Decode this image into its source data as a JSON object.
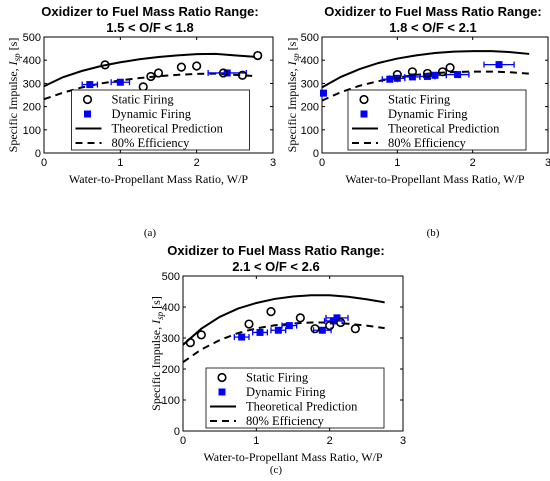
{
  "legend_labels": {
    "static": "Static Firing",
    "dynamic": "Dynamic Firing",
    "theory": "Theoretical Prediction",
    "eff": "80% Efficiency"
  },
  "colors": {
    "static": "#000000",
    "dynamic": "#0000ff",
    "theory": "#000000",
    "eff": "#000000"
  },
  "chart_data": [
    {
      "type": "scatter",
      "title": [
        "Oxidizer to Fuel Mass Ratio Range:",
        "1.5 < O/F < 1.8"
      ],
      "caption": "(a)",
      "xlabel": "Water-to-Propellant Mass Ratio, W/P",
      "ylabel": "Specific Impulse, ",
      "ylabel_var": "I",
      "ylabel_sub": "sp",
      "ylabel_unit": " [s]",
      "xlim": [
        0,
        3
      ],
      "ylim": [
        0,
        500
      ],
      "xticks": [
        "0",
        "1",
        "2",
        "3"
      ],
      "yticks": [
        "0",
        "100",
        "200",
        "300",
        "400",
        "500"
      ],
      "legend_position": "bottom-center",
      "series": [
        {
          "name": "Static Firing",
          "x": [
            0.8,
            1.3,
            1.4,
            1.5,
            1.8,
            2.0,
            2.35,
            2.6,
            2.8
          ],
          "y": [
            380,
            285,
            330,
            345,
            370,
            375,
            345,
            335,
            420
          ]
        },
        {
          "name": "Dynamic Firing",
          "x": [
            0.6,
            1.0,
            2.4
          ],
          "y": [
            295,
            305,
            345
          ],
          "xerr": [
            0.1,
            0.12,
            0.25
          ]
        },
        {
          "name": "Theoretical Prediction",
          "x": [
            0,
            0.25,
            0.5,
            0.75,
            1.0,
            1.25,
            1.5,
            1.75,
            2.0,
            2.25,
            2.5,
            2.75
          ],
          "y": [
            288,
            327,
            354,
            375,
            391,
            404,
            414,
            421,
            426,
            427,
            421,
            415
          ]
        },
        {
          "name": "80% Efficiency",
          "x": [
            0,
            0.25,
            0.5,
            0.75,
            1.0,
            1.25,
            1.5,
            1.75,
            2.0,
            2.25,
            2.5,
            2.75
          ],
          "y": [
            232,
            260,
            283,
            300,
            313,
            323,
            331,
            337,
            341,
            342,
            337,
            332
          ]
        }
      ]
    },
    {
      "type": "scatter",
      "title": [
        "Oxidizer to Fuel Mass Ratio Range:",
        "1.8 < O/F < 2.1"
      ],
      "caption": "(b)",
      "xlabel": "Water-to-Propellant Mass Ratio, W/P",
      "ylabel": "Specific Impulse, ",
      "ylabel_var": "I",
      "ylabel_sub": "sp",
      "ylabel_unit": " [s]",
      "xlim": [
        0,
        3
      ],
      "ylim": [
        0,
        500
      ],
      "xticks": [
        "0",
        "1",
        "2",
        "3"
      ],
      "yticks": [
        "0",
        "100",
        "200",
        "300",
        "400",
        "500"
      ],
      "legend_position": "bottom-center",
      "series": [
        {
          "name": "Static Firing",
          "x": [
            1.0,
            1.2,
            1.4,
            1.6,
            1.7
          ],
          "y": [
            338,
            350,
            343,
            350,
            368
          ]
        },
        {
          "name": "Dynamic Firing",
          "x": [
            0.02,
            0.9,
            1.0,
            1.2,
            1.4,
            1.5,
            1.8,
            2.35
          ],
          "y": [
            258,
            318,
            322,
            328,
            330,
            335,
            338,
            381
          ],
          "xerr": [
            0,
            0.1,
            0.1,
            0.1,
            0.1,
            0.15,
            0.15,
            0.2
          ]
        },
        {
          "name": "Theoretical Prediction",
          "x": [
            0,
            0.25,
            0.5,
            0.75,
            1.0,
            1.25,
            1.5,
            1.75,
            2.0,
            2.25,
            2.5,
            2.75
          ],
          "y": [
            283,
            328,
            362,
            388,
            407,
            421,
            431,
            437,
            439,
            439,
            435,
            427
          ]
        },
        {
          "name": "80% Efficiency",
          "x": [
            0,
            0.25,
            0.5,
            0.75,
            1.0,
            1.25,
            1.5,
            1.75,
            2.0,
            2.25,
            2.5,
            2.75
          ],
          "y": [
            226,
            262,
            290,
            310,
            325,
            337,
            345,
            349,
            351,
            351,
            348,
            342
          ]
        }
      ]
    },
    {
      "type": "scatter",
      "title": [
        "Oxidizer to Fuel Mass Ratio Range:",
        "2.1 < O/F < 2.6"
      ],
      "caption": "(c)",
      "xlabel": "Water-to-Propellant Mass Ratio, W/P",
      "ylabel": "Specific Impulse, ",
      "ylabel_var": "I",
      "ylabel_sub": "sp",
      "ylabel_unit": " [s]",
      "xlim": [
        0,
        3
      ],
      "ylim": [
        0,
        500
      ],
      "xticks": [
        "0",
        "1",
        "2",
        "3"
      ],
      "yticks": [
        "0",
        "100",
        "200",
        "300",
        "400",
        "500"
      ],
      "legend_position": "bottom-center",
      "series": [
        {
          "name": "Static Firing",
          "x": [
            0.1,
            0.25,
            0.9,
            1.2,
            1.6,
            1.8,
            2.0,
            2.15,
            2.35
          ],
          "y": [
            285,
            310,
            345,
            385,
            365,
            330,
            340,
            350,
            330
          ]
        },
        {
          "name": "Dynamic Firing",
          "x": [
            0.8,
            1.05,
            1.3,
            1.45,
            1.9,
            2.05,
            2.1
          ],
          "y": [
            303,
            318,
            325,
            340,
            325,
            355,
            365
          ],
          "xerr": [
            0.1,
            0.1,
            0.1,
            0.1,
            0.12,
            0.12,
            0.15
          ]
        },
        {
          "name": "Theoretical Prediction",
          "x": [
            0,
            0.25,
            0.5,
            0.75,
            1.0,
            1.25,
            1.5,
            1.75,
            2.0,
            2.25,
            2.5,
            2.75
          ],
          "y": [
            278,
            330,
            368,
            395,
            413,
            426,
            434,
            438,
            438,
            433,
            425,
            415
          ]
        },
        {
          "name": "80% Efficiency",
          "x": [
            0,
            0.25,
            0.5,
            0.75,
            1.0,
            1.25,
            1.5,
            1.75,
            2.0,
            2.25,
            2.5,
            2.75
          ],
          "y": [
            222,
            263,
            293,
            316,
            331,
            341,
            347,
            350,
            350,
            346,
            340,
            332
          ]
        }
      ]
    }
  ]
}
